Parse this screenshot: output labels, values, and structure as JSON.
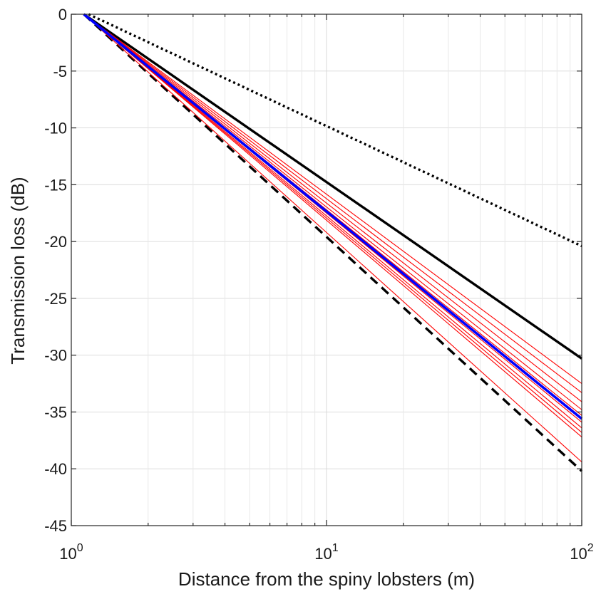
{
  "chart_data": {
    "type": "line",
    "xscale": "log",
    "xlim": [
      1,
      100
    ],
    "ylim": [
      -45,
      0
    ],
    "xlabel": "Distance from the spiny lobsters (m)",
    "ylabel": "Transmission loss (dB)",
    "grid": true,
    "x_ticks": [
      {
        "value": 1,
        "base": "10",
        "exp": "0"
      },
      {
        "value": 10,
        "base": "10",
        "exp": "1"
      },
      {
        "value": 100,
        "base": "10",
        "exp": "2"
      }
    ],
    "y_ticks": [
      0,
      -5,
      -10,
      -15,
      -20,
      -25,
      -30,
      -35,
      -40,
      -45
    ],
    "series": [
      {
        "style": "dotted",
        "color": "#000000",
        "width": 3.4,
        "points": [
          [
            1.17,
            0
          ],
          [
            100,
            -20.4
          ]
        ]
      },
      {
        "style": "solid",
        "color": "#000000",
        "width": 3.4,
        "points": [
          [
            1.12,
            0
          ],
          [
            100,
            -30.3
          ]
        ]
      },
      {
        "style": "dashed",
        "color": "#000000",
        "width": 3.4,
        "points": [
          [
            1.12,
            0
          ],
          [
            100,
            -40.2
          ]
        ]
      },
      {
        "style": "solid",
        "color": "#ff0000",
        "width": 1.1,
        "points": [
          [
            1.12,
            0
          ],
          [
            100,
            -32.5
          ]
        ]
      },
      {
        "style": "solid",
        "color": "#ff0000",
        "width": 1.1,
        "points": [
          [
            1.12,
            0
          ],
          [
            100,
            -33.3
          ]
        ]
      },
      {
        "style": "solid",
        "color": "#ff0000",
        "width": 1.1,
        "points": [
          [
            1.12,
            0
          ],
          [
            100,
            -34.1
          ]
        ]
      },
      {
        "style": "solid",
        "color": "#ff0000",
        "width": 1.1,
        "points": [
          [
            1.12,
            0
          ],
          [
            100,
            -34.8
          ]
        ]
      },
      {
        "style": "solid",
        "color": "#ff0000",
        "width": 1.1,
        "points": [
          [
            1.12,
            0
          ],
          [
            100,
            -35.3
          ]
        ]
      },
      {
        "style": "solid",
        "color": "#ff0000",
        "width": 1.1,
        "points": [
          [
            1.12,
            0
          ],
          [
            100,
            -35.9
          ]
        ]
      },
      {
        "style": "solid",
        "color": "#ff0000",
        "width": 1.1,
        "points": [
          [
            1.12,
            0
          ],
          [
            100,
            -36.4
          ]
        ]
      },
      {
        "style": "solid",
        "color": "#ff0000",
        "width": 1.1,
        "points": [
          [
            1.12,
            0
          ],
          [
            100,
            -36.8
          ]
        ]
      },
      {
        "style": "solid",
        "color": "#ff0000",
        "width": 1.1,
        "points": [
          [
            1.12,
            0
          ],
          [
            100,
            -37.2
          ]
        ]
      },
      {
        "style": "solid",
        "color": "#ff0000",
        "width": 1.1,
        "points": [
          [
            1.12,
            0
          ],
          [
            100,
            -39.4
          ]
        ]
      },
      {
        "style": "solid",
        "color": "#0000ff",
        "width": 3.6,
        "points": [
          [
            1.12,
            0
          ],
          [
            100,
            -35.6
          ]
        ]
      }
    ]
  }
}
